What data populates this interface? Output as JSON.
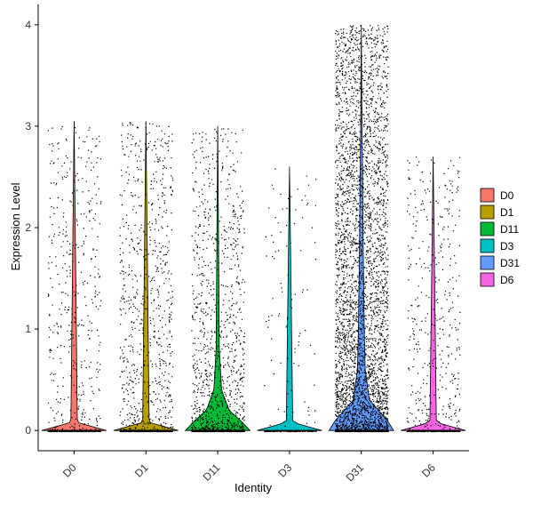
{
  "chart_data": {
    "type": "violin",
    "xlabel": "Identity",
    "ylabel": "Expression Level",
    "ylim": [
      -0.2,
      4.2
    ],
    "yticks": [
      0,
      1,
      2,
      3,
      4
    ],
    "categories": [
      "D0",
      "D1",
      "D11",
      "D3",
      "D31",
      "D6"
    ],
    "series": [
      {
        "name": "D0",
        "color": "#F8766D",
        "max": 3.05,
        "n_points": 900,
        "zero_fraction": 0.55,
        "density_profile": [
          [
            0,
            1.0
          ],
          [
            0.08,
            0.1
          ],
          [
            3.05,
            0.0
          ]
        ]
      },
      {
        "name": "D1",
        "color": "#B79F00",
        "max": 3.05,
        "n_points": 1700,
        "zero_fraction": 0.55,
        "density_profile": [
          [
            0,
            1.0
          ],
          [
            0.08,
            0.1
          ],
          [
            3.05,
            0.0
          ]
        ]
      },
      {
        "name": "D11",
        "color": "#00BA38",
        "max": 3.0,
        "n_points": 2000,
        "zero_fraction": 0.45,
        "density_profile": [
          [
            0,
            1.0
          ],
          [
            0.1,
            0.7
          ],
          [
            0.2,
            0.35
          ],
          [
            0.4,
            0.12
          ],
          [
            0.8,
            0.05
          ],
          [
            3.0,
            0.0
          ]
        ]
      },
      {
        "name": "D3",
        "color": "#00BFC4",
        "max": 2.6,
        "n_points": 350,
        "zero_fraction": 0.7,
        "density_profile": [
          [
            0,
            1.0
          ],
          [
            0.08,
            0.1
          ],
          [
            2.6,
            0.0
          ]
        ]
      },
      {
        "name": "D31",
        "color": "#619CFF",
        "max": 4.0,
        "n_points": 5500,
        "zero_fraction": 0.3,
        "density_profile": [
          [
            0,
            1.0
          ],
          [
            0.1,
            0.8
          ],
          [
            0.3,
            0.25
          ],
          [
            0.6,
            0.12
          ],
          [
            1.0,
            0.09
          ],
          [
            1.5,
            0.07
          ],
          [
            2.0,
            0.05
          ],
          [
            2.5,
            0.04
          ],
          [
            3.0,
            0.02
          ],
          [
            4.0,
            0.0
          ]
        ]
      },
      {
        "name": "D6",
        "color": "#F564E3",
        "max": 2.7,
        "n_points": 900,
        "zero_fraction": 0.55,
        "density_profile": [
          [
            0,
            1.0
          ],
          [
            0.08,
            0.1
          ],
          [
            2.7,
            0.0
          ]
        ]
      }
    ],
    "grid": false,
    "legend": {
      "placement": "right",
      "entries": [
        "D0",
        "D1",
        "D11",
        "D3",
        "D31",
        "D6"
      ]
    }
  }
}
